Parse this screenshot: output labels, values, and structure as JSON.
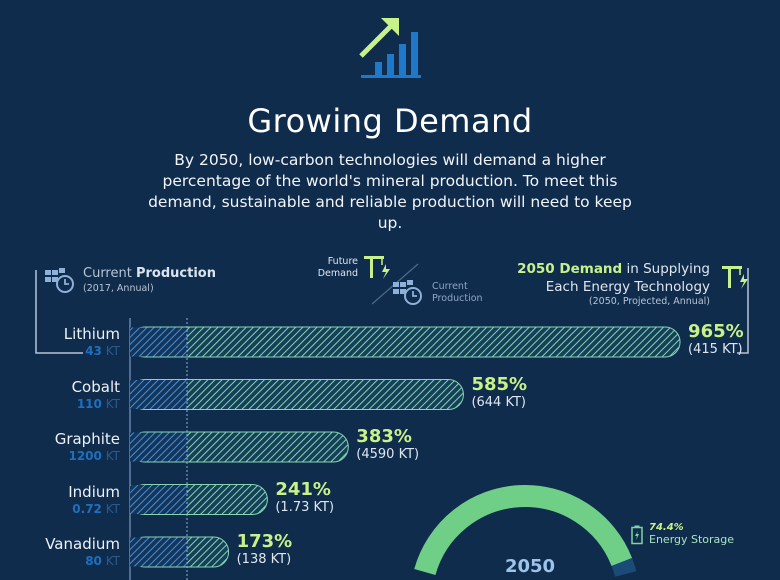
{
  "header": {
    "icon": "growth-chart-arrow-icon",
    "title": "Growing Demand",
    "subtitle": "By 2050, low-carbon technologies will demand a higher percentage of the world's mineral production. To meet this demand, sustainable and reliable production will need to keep up."
  },
  "legend": {
    "current_prefix": "Current ",
    "current_bold": "Production",
    "current_note": "(2017, Annual)",
    "ratio_top": "Future Demand",
    "ratio_bottom": "Current Production",
    "demand_bold": "2050 Demand",
    "demand_rest": " in Supplying",
    "demand_line2": "Each Energy Technology",
    "demand_note": "(2050, Projected, Annual)"
  },
  "colors": {
    "background": "#0f2c4d",
    "current": "#2b6cb0",
    "demand": "#7fd3a0",
    "accent": "#c7f28a"
  },
  "chart_data": {
    "type": "bar",
    "orientation": "horizontal",
    "categories": [
      "Lithium",
      "Cobalt",
      "Graphite",
      "Indium",
      "Vanadium"
    ],
    "current_production": [
      {
        "value": "43",
        "unit": "KT"
      },
      {
        "value": "110",
        "unit": "KT"
      },
      {
        "value": "1200",
        "unit": "KT"
      },
      {
        "value": "0.72",
        "unit": "KT"
      },
      {
        "value": "80",
        "unit": "KT"
      }
    ],
    "demand_percent": [
      965,
      585,
      383,
      241,
      173
    ],
    "demand_percent_labels": [
      "965%",
      "585%",
      "383%",
      "241%",
      "173%"
    ],
    "demand_amount_labels": [
      "(415 KT)",
      "(644 KT)",
      "(4590 KT)",
      "(1.73 KT)",
      "(138 KT)"
    ],
    "reference_percent": 100
  },
  "donut": {
    "center_label": "2050",
    "segments": [
      {
        "label": "Energy Storage",
        "value_label": "74.4%",
        "value": 74.4,
        "icon": "battery-icon"
      }
    ]
  }
}
